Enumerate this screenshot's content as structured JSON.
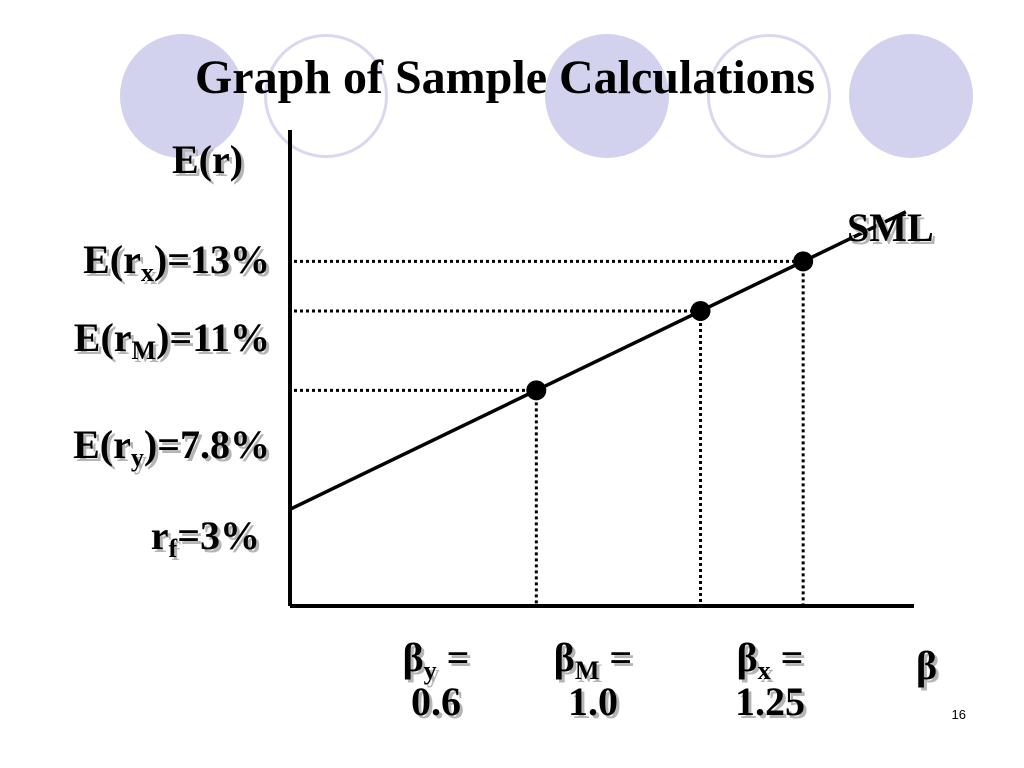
{
  "slide": {
    "title": "Graph of Sample Calculations",
    "page_number": "16",
    "decor_colors": {
      "circle_fill": "#d2d2ee",
      "circle_outline": "#d8d8f0"
    }
  },
  "chart_data": {
    "type": "line",
    "title": "Graph of Sample Calculations",
    "ylabel": "E(r)",
    "xlabel": "β",
    "line_label": "SML",
    "x_unit": "beta",
    "y_unit": "%",
    "risk_free": {
      "text_main": "r",
      "text_sub": "f",
      "text_tail": "=3%",
      "y": 3
    },
    "series": [
      {
        "name": "SML",
        "line": {
          "x_start": 0,
          "x_end": 1.5,
          "slope": 8,
          "intercept": 3
        }
      }
    ],
    "points": [
      {
        "beta": 0.6,
        "er": 7.8,
        "y_label": {
          "head": "E(r",
          "sub": "y",
          "tail": ")=7.8%"
        },
        "x_label": {
          "sym": "β",
          "sub": "y",
          "eq": " =",
          "value": "0.6"
        }
      },
      {
        "beta": 1.0,
        "er": 11,
        "y_label": {
          "head": "E(r",
          "sub": "M",
          "tail": ")=11%"
        },
        "x_label": {
          "sym": "β",
          "sub": "M",
          "eq": " =",
          "value": "1.0"
        }
      },
      {
        "beta": 1.25,
        "er": 13,
        "y_label": {
          "head": "E(r",
          "sub": "x",
          "tail": ")=13%"
        },
        "x_label": {
          "sym": "β",
          "sub": "x",
          "eq": " =",
          "value": "1.25"
        }
      }
    ],
    "xlim": [
      0,
      1.52
    ],
    "ylim": [
      -0.9,
      18.3
    ],
    "grid": false,
    "legend": "none"
  }
}
